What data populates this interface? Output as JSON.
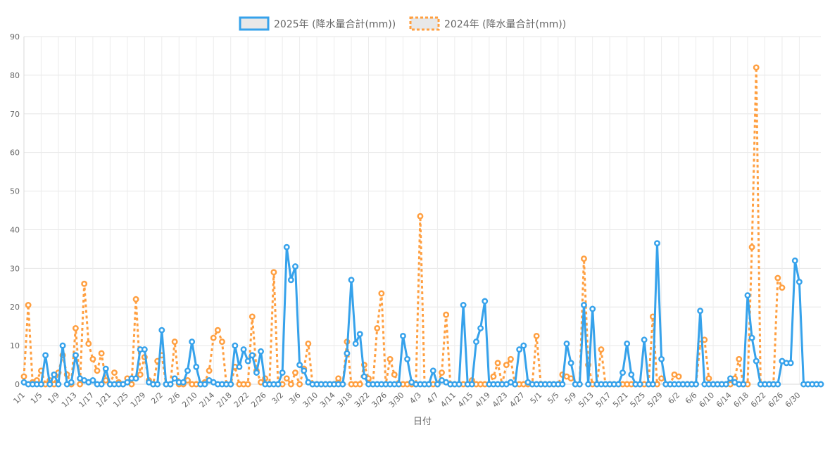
{
  "chart_data": {
    "type": "line",
    "xlabel": "日付",
    "ylabel": "",
    "ylim": [
      0,
      90
    ],
    "yticks": [
      0,
      10,
      20,
      30,
      40,
      50,
      60,
      70,
      80,
      90
    ],
    "grid": true,
    "legend_position": "top-center",
    "x_tick_labels": [
      "1/1",
      "1/5",
      "1/9",
      "1/13",
      "1/17",
      "1/21",
      "1/25",
      "1/29",
      "2/2",
      "2/6",
      "2/10",
      "2/14",
      "2/18",
      "2/22",
      "2/26",
      "3/2",
      "3/6",
      "3/10",
      "3/14",
      "3/18",
      "3/22",
      "3/26",
      "3/30",
      "4/3",
      "4/7",
      "4/11",
      "4/15",
      "4/19",
      "4/23",
      "4/27",
      "5/1",
      "5/5",
      "5/9",
      "5/13",
      "5/17",
      "5/21",
      "5/25",
      "5/29",
      "6/2",
      "6/6",
      "6/10",
      "6/14",
      "6/18",
      "6/22",
      "6/26",
      "6/30"
    ],
    "series": [
      {
        "name": "2025年 (降水量合計(mm))",
        "color": "#36a2eb",
        "style": "solid",
        "values": [
          0.5,
          0,
          0,
          0,
          0,
          7.5,
          0,
          2.5,
          0,
          10,
          0,
          0.5,
          7.5,
          1.5,
          1,
          0.5,
          1,
          0,
          0,
          4,
          0,
          0,
          0,
          0,
          0.5,
          1.5,
          1.5,
          9,
          9,
          0.5,
          0,
          0,
          14,
          0,
          0,
          1.5,
          0.5,
          0.5,
          3.5,
          11,
          4.5,
          0,
          0,
          1,
          0.5,
          0,
          0,
          0,
          0,
          10,
          4.5,
          9,
          6,
          7.5,
          3,
          8.5,
          0,
          0,
          0,
          0,
          3,
          35.5,
          27,
          30.5,
          5,
          3.5,
          0.5,
          0,
          0,
          0,
          0,
          0,
          0,
          0,
          0,
          8,
          27,
          10.5,
          13,
          2,
          0,
          0,
          0,
          0,
          0,
          0,
          0,
          0,
          12.5,
          6.5,
          0.5,
          0,
          0,
          0,
          0,
          3.5,
          0,
          1,
          0.5,
          0,
          0,
          0,
          20.5,
          0,
          0,
          11,
          14.5,
          21.5,
          0,
          0,
          0,
          0,
          0,
          0.5,
          0,
          9,
          10,
          0.5,
          0,
          0,
          0,
          0,
          0,
          0,
          0,
          0,
          10.5,
          5.5,
          0,
          0,
          20.5,
          0,
          19.5,
          0,
          0,
          0,
          0,
          0,
          0,
          3,
          10.5,
          2.5,
          0,
          0,
          11.5,
          0,
          0,
          36.5,
          6.5,
          0,
          0,
          0,
          0,
          0,
          0,
          0,
          0,
          19,
          0,
          0,
          0,
          0,
          0,
          0,
          1.5,
          0.5,
          0,
          0,
          23,
          12,
          6,
          0,
          0,
          0,
          0,
          0,
          6,
          5.5,
          5.5,
          32,
          26.5,
          0,
          0,
          0,
          0,
          0
        ]
      },
      {
        "name": "2024年 (降水量合計(mm))",
        "color": "#ff9f40",
        "style": "dotted",
        "values": [
          2,
          20.5,
          0.5,
          1,
          3.5,
          0,
          1,
          0,
          3,
          7.5,
          2.5,
          0,
          14.5,
          0,
          26,
          10.5,
          6.5,
          3.5,
          8,
          1,
          0,
          3,
          0.5,
          0,
          1.5,
          0,
          22,
          2.5,
          7,
          1,
          0,
          6,
          7.5,
          0,
          0,
          11,
          0,
          0,
          1,
          0,
          0,
          0,
          0.5,
          3.5,
          12,
          14,
          11,
          0,
          0,
          4.5,
          0,
          0,
          0,
          17.5,
          3.5,
          0.5,
          1.5,
          0,
          29,
          0,
          0,
          1.5,
          0,
          3,
          0,
          4,
          10.5,
          0,
          0,
          0,
          0,
          0,
          0,
          1.5,
          0,
          11,
          0,
          0,
          0,
          5,
          1.5,
          0,
          14.5,
          23.5,
          0,
          6.5,
          2.5,
          0,
          0,
          0,
          0,
          0,
          43.5,
          0,
          0,
          0,
          0,
          3,
          18,
          0,
          0,
          0,
          0,
          0,
          1,
          0,
          0,
          0,
          0,
          2,
          5.5,
          0,
          5,
          6.5,
          0,
          0,
          0,
          0,
          0,
          12.5,
          0,
          0,
          0,
          0,
          0,
          2.5,
          2,
          1.5,
          0,
          0,
          32.5,
          5,
          0,
          0,
          9,
          0,
          0,
          0,
          0,
          0,
          0,
          0,
          0,
          0,
          0,
          0,
          17.5,
          0,
          1.5,
          0,
          0,
          2.5,
          2,
          0,
          0,
          0,
          0,
          10.5,
          11.5,
          1.5,
          0,
          0,
          0,
          0,
          0,
          1.5,
          6.5,
          0,
          0,
          35.5,
          82,
          0,
          0,
          0,
          0,
          27.5,
          25
        ]
      }
    ]
  }
}
